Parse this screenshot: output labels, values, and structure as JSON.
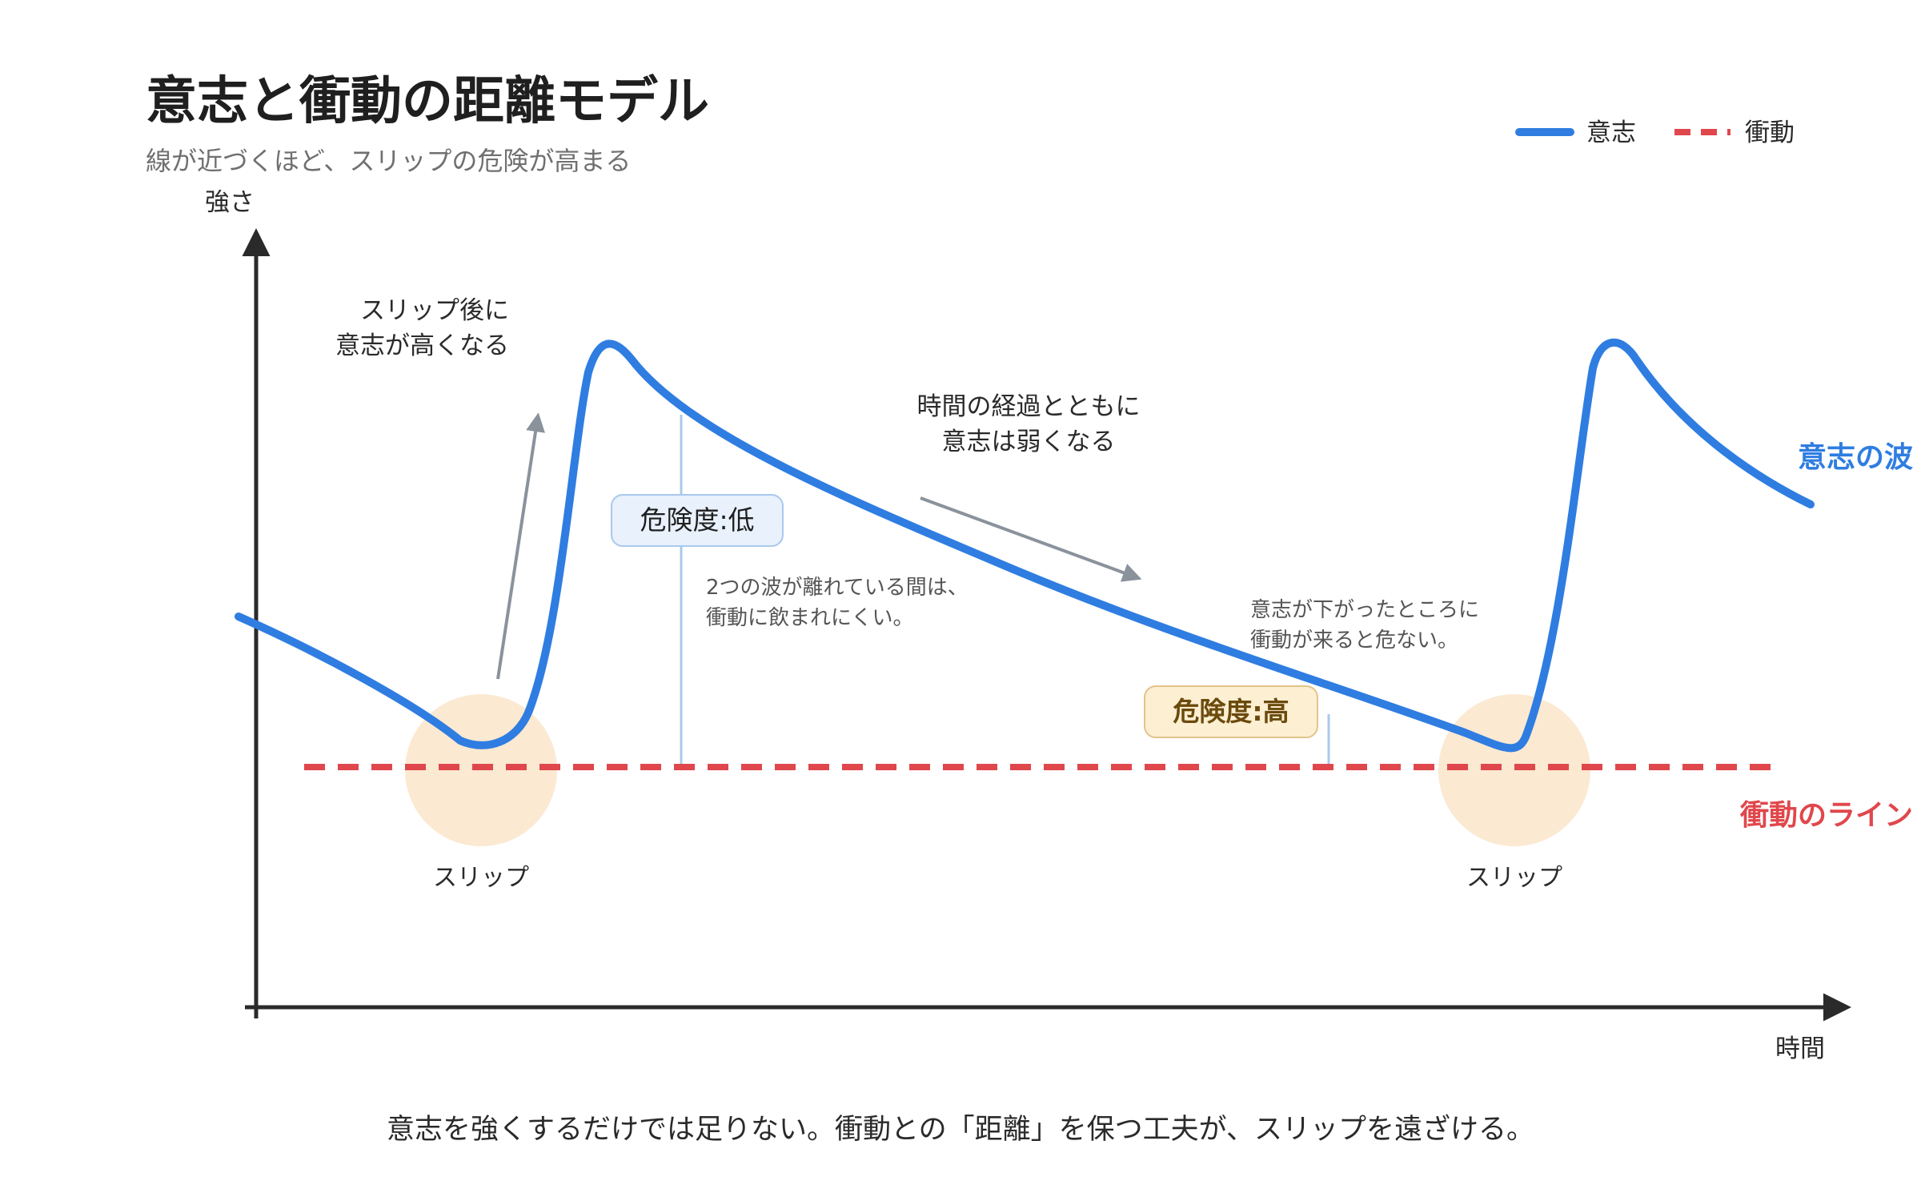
{
  "header": {
    "title": "意志と衝動の距離モデル",
    "subtitle": "線が近づくほど、スリップの危険が高まる"
  },
  "legend": {
    "will_label": "意志",
    "impulse_label": "衝動"
  },
  "axes": {
    "y_label": "強さ",
    "x_label": "時間"
  },
  "annotations": {
    "rise_line1": "スリップ後に",
    "rise_line2": "意志が高くなる",
    "decline_line1": "時間の経過とともに",
    "decline_line2": "意志は弱くなる",
    "gap_note_line1": "2つの波が離れている間は、",
    "gap_note_line2": "衝動に飲まれにくい。",
    "danger_note_line1": "意志が下がったところに",
    "danger_note_line2": "衝動が来ると危ない。"
  },
  "badges": {
    "low": "危険度:低",
    "high": "危険度:高"
  },
  "slip_labels": {
    "first": "スリップ",
    "second": "スリップ"
  },
  "series_labels": {
    "will_wave": "意志の波",
    "impulse_line": "衝動のライン"
  },
  "footer": {
    "text": "意志を強くするだけでは足りない。衝動との「距離」を保つ工夫が、スリップを遠ざける。"
  },
  "colors": {
    "will": "#2f7de1",
    "impulse": "#e0474c",
    "slip_circle": "#fbe9d2",
    "axis": "#2a2a2a",
    "arrow": "#8a929c",
    "badge_low_fill": "#e8f1fc",
    "badge_low_border": "#a9c8ee",
    "badge_high_fill": "#fcefd2",
    "badge_high_border": "#e2c48a"
  }
}
